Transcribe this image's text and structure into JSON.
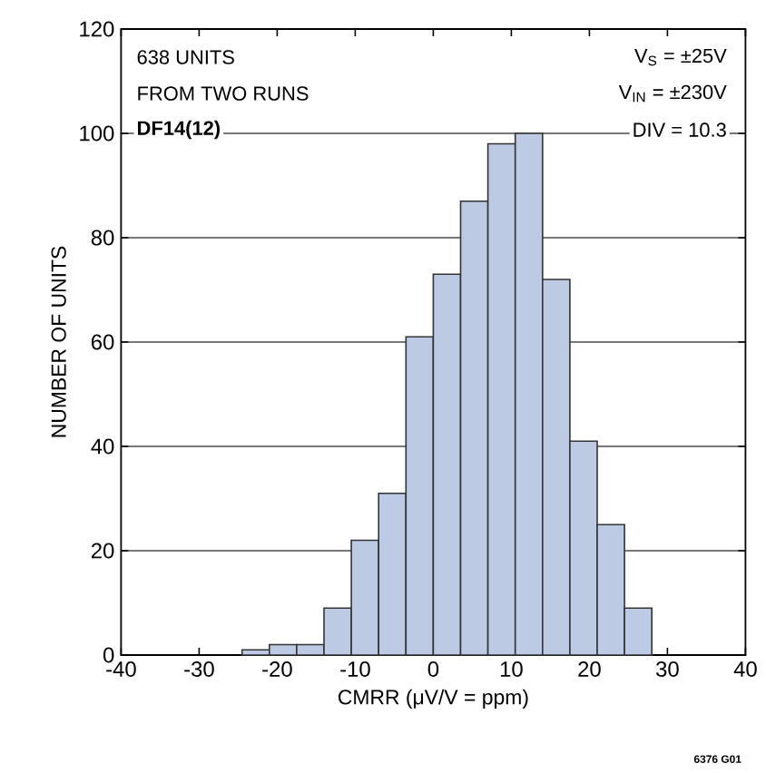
{
  "chart_data": {
    "type": "histogram",
    "xlabel": "CMRR (μV/V = ppm)",
    "ylabel": "NUMBER OF UNITS",
    "bins": [
      -24.5,
      -21,
      -17.5,
      -14,
      -10.5,
      -7,
      -3.5,
      0,
      3.5,
      7,
      10.5,
      14,
      17.5,
      21,
      24.5,
      28
    ],
    "values": [
      1,
      2,
      2,
      9,
      22,
      31,
      61,
      73,
      87,
      98,
      100,
      72,
      41,
      25,
      9
    ],
    "color": "#bccbe3",
    "xlim": [
      -40,
      40
    ],
    "xticks": [
      -40,
      -30,
      -20,
      -10,
      0,
      10,
      20,
      30,
      40
    ],
    "ylim": [
      0,
      120
    ],
    "yticks": [
      0,
      20,
      40,
      60,
      80,
      100,
      120
    ],
    "grid": "y",
    "annotations": [
      "638 UNITS",
      "FROM TWO RUNS",
      "**DF14(12)**",
      "V$_{S}$ = ±25V",
      "V$_{IN}$ = ±230V",
      "DIV = 10.3",
      "6376 G01"
    ]
  }
}
